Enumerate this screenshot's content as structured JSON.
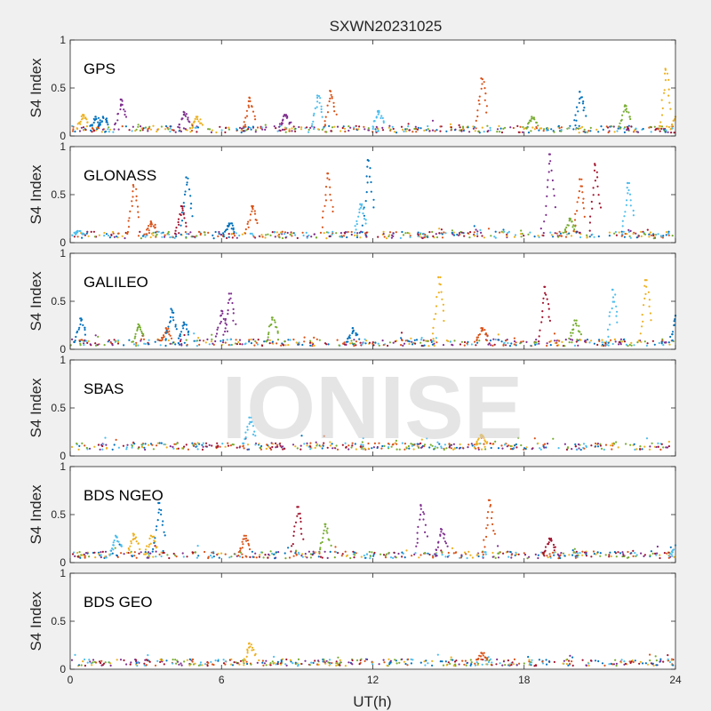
{
  "chart_data": {
    "type": "scatter",
    "title": "SXWN20231025",
    "xlabel": "UT(h)",
    "ylabel": "S4 Index",
    "xlim": [
      0,
      24
    ],
    "ylim": [
      0,
      1
    ],
    "xticks": [
      "0",
      "6",
      "12",
      "18",
      "24"
    ],
    "yticks": [
      "0",
      "0.5",
      "1"
    ],
    "grid": false,
    "watermark": "IONISE",
    "colors": [
      "#0072bd",
      "#d95319",
      "#edb120",
      "#7e2f8e",
      "#77ac30",
      "#4dbeee",
      "#a2142f"
    ],
    "panels": [
      {
        "label": "GPS",
        "baseline": 0.07,
        "spikes": [
          {
            "t": 0.5,
            "peak": 0.22,
            "color": 2
          },
          {
            "t": 1.0,
            "peak": 0.2,
            "color": 0
          },
          {
            "t": 1.3,
            "peak": 0.2,
            "color": 0
          },
          {
            "t": 2.0,
            "peak": 0.38,
            "color": 3
          },
          {
            "t": 4.5,
            "peak": 0.25,
            "color": 3
          },
          {
            "t": 5.0,
            "peak": 0.2,
            "color": 2
          },
          {
            "t": 7.1,
            "peak": 0.4,
            "color": 1
          },
          {
            "t": 8.5,
            "peak": 0.22,
            "color": 3
          },
          {
            "t": 9.8,
            "peak": 0.42,
            "color": 5
          },
          {
            "t": 10.3,
            "peak": 0.47,
            "color": 1
          },
          {
            "t": 12.2,
            "peak": 0.26,
            "color": 5
          },
          {
            "t": 16.3,
            "peak": 0.6,
            "color": 1
          },
          {
            "t": 18.3,
            "peak": 0.2,
            "color": 4
          },
          {
            "t": 20.2,
            "peak": 0.46,
            "color": 0
          },
          {
            "t": 22.0,
            "peak": 0.32,
            "color": 4
          },
          {
            "t": 23.6,
            "peak": 0.7,
            "color": 2
          },
          {
            "t": 24.0,
            "peak": 0.2,
            "color": 2
          }
        ]
      },
      {
        "label": "GLONASS",
        "baseline": 0.08,
        "spikes": [
          {
            "t": 0.3,
            "peak": 0.12,
            "color": 5
          },
          {
            "t": 2.5,
            "peak": 0.6,
            "color": 1
          },
          {
            "t": 3.2,
            "peak": 0.22,
            "color": 1
          },
          {
            "t": 4.4,
            "peak": 0.38,
            "color": 6
          },
          {
            "t": 4.6,
            "peak": 0.68,
            "color": 0
          },
          {
            "t": 6.3,
            "peak": 0.2,
            "color": 0
          },
          {
            "t": 7.2,
            "peak": 0.38,
            "color": 1
          },
          {
            "t": 10.2,
            "peak": 0.72,
            "color": 1
          },
          {
            "t": 11.5,
            "peak": 0.4,
            "color": 5
          },
          {
            "t": 11.8,
            "peak": 0.86,
            "color": 0
          },
          {
            "t": 19.0,
            "peak": 0.92,
            "color": 3
          },
          {
            "t": 20.2,
            "peak": 0.66,
            "color": 1
          },
          {
            "t": 20.8,
            "peak": 0.82,
            "color": 6
          },
          {
            "t": 22.1,
            "peak": 0.62,
            "color": 5
          },
          {
            "t": 19.8,
            "peak": 0.25,
            "color": 4
          }
        ]
      },
      {
        "label": "GALILEO",
        "baseline": 0.07,
        "spikes": [
          {
            "t": 0.4,
            "peak": 0.32,
            "color": 0
          },
          {
            "t": 2.7,
            "peak": 0.26,
            "color": 4
          },
          {
            "t": 3.8,
            "peak": 0.22,
            "color": 1
          },
          {
            "t": 4.0,
            "peak": 0.42,
            "color": 0
          },
          {
            "t": 4.5,
            "peak": 0.28,
            "color": 0
          },
          {
            "t": 6.0,
            "peak": 0.4,
            "color": 3
          },
          {
            "t": 6.3,
            "peak": 0.58,
            "color": 3
          },
          {
            "t": 8.0,
            "peak": 0.33,
            "color": 4
          },
          {
            "t": 11.2,
            "peak": 0.22,
            "color": 0
          },
          {
            "t": 14.6,
            "peak": 0.75,
            "color": 2
          },
          {
            "t": 16.3,
            "peak": 0.22,
            "color": 1
          },
          {
            "t": 18.8,
            "peak": 0.65,
            "color": 6
          },
          {
            "t": 20.0,
            "peak": 0.3,
            "color": 4
          },
          {
            "t": 21.5,
            "peak": 0.62,
            "color": 5
          },
          {
            "t": 22.8,
            "peak": 0.72,
            "color": 2
          },
          {
            "t": 24.0,
            "peak": 0.35,
            "color": 0
          }
        ]
      },
      {
        "label": "SBAS",
        "baseline": 0.1,
        "spikes": [
          {
            "t": 7.1,
            "peak": 0.4,
            "color": 5
          },
          {
            "t": 16.3,
            "peak": 0.22,
            "color": 2
          }
        ]
      },
      {
        "label": "BDS NGEO",
        "baseline": 0.08,
        "spikes": [
          {
            "t": 1.8,
            "peak": 0.28,
            "color": 5
          },
          {
            "t": 2.5,
            "peak": 0.3,
            "color": 2
          },
          {
            "t": 3.2,
            "peak": 0.28,
            "color": 2
          },
          {
            "t": 3.5,
            "peak": 0.62,
            "color": 0
          },
          {
            "t": 6.9,
            "peak": 0.28,
            "color": 1
          },
          {
            "t": 9.0,
            "peak": 0.58,
            "color": 6
          },
          {
            "t": 10.1,
            "peak": 0.4,
            "color": 4
          },
          {
            "t": 13.9,
            "peak": 0.6,
            "color": 3
          },
          {
            "t": 14.7,
            "peak": 0.35,
            "color": 3
          },
          {
            "t": 16.6,
            "peak": 0.65,
            "color": 1
          },
          {
            "t": 19.0,
            "peak": 0.25,
            "color": 6
          },
          {
            "t": 24.0,
            "peak": 0.18,
            "color": 5
          }
        ]
      },
      {
        "label": "BDS GEO",
        "baseline": 0.07,
        "spikes": [
          {
            "t": 7.1,
            "peak": 0.27,
            "color": 2
          },
          {
            "t": 16.3,
            "peak": 0.17,
            "color": 1
          }
        ]
      }
    ]
  }
}
